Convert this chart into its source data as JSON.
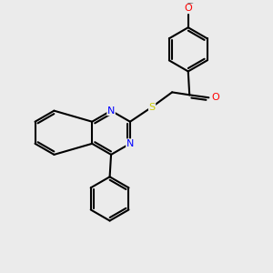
{
  "background_color": "#ebebeb",
  "bond_color": "#000000",
  "bond_width": 1.5,
  "atom_colors": {
    "N": "#0000ff",
    "O": "#ff0000",
    "S": "#cccc00"
  },
  "font_size": 8,
  "figsize": [
    3.0,
    3.0
  ],
  "dpi": 100,
  "xlim": [
    0,
    10
  ],
  "ylim": [
    0,
    10
  ]
}
